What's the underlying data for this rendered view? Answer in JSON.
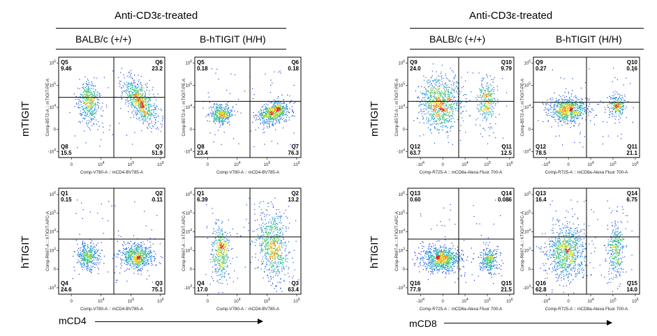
{
  "figure": {
    "groups": [
      {
        "title": "Anti-CD3ε-treated",
        "columns": [
          "BALB/c (+/+)",
          "B-hTIGIT (H/H)"
        ],
        "rows": [
          "mTIGIT",
          "hTIGIT"
        ],
        "x_axis_title": "mCD4"
      },
      {
        "title": "Anti-CD3ε-treated",
        "columns": [
          "BALB/c (+/+)",
          "B-hTIGIT (H/H)"
        ],
        "rows": [
          "mTIGIT",
          "hTIGIT"
        ],
        "x_axis_title": "mCD8"
      }
    ]
  },
  "chart_data": [
    {
      "type": "scatter",
      "panel": "CD4 / mTIGIT / BALB/c (+/+)",
      "xlabel": "Comp-V780-A :: mCD4-BV785-A",
      "ylabel": "Comp-B572-A :: mTIGIT-PE-A",
      "x_ticks": [
        "0",
        "10^4",
        "10^5",
        "10^6"
      ],
      "y_ticks": [
        "10^6",
        "10^5",
        "10^4",
        "0",
        "-10^4"
      ],
      "quadrants": [
        {
          "name": "Q5",
          "value": "9.46",
          "corner": "top-left"
        },
        {
          "name": "Q6",
          "value": "23.2",
          "corner": "top-right"
        },
        {
          "name": "Q8",
          "value": "15.5",
          "corner": "bottom-left"
        },
        {
          "name": "Q7",
          "value": "51.9",
          "corner": "bottom-right"
        }
      ],
      "populations": [
        {
          "x": 0.28,
          "y": 0.45,
          "sx": 0.05,
          "sy": 0.1,
          "rot": 0,
          "n": 420
        },
        {
          "x": 0.76,
          "y": 0.44,
          "sx": 0.055,
          "sy": 0.13,
          "rot": -30,
          "n": 700
        }
      ]
    },
    {
      "type": "scatter",
      "panel": "CD4 / mTIGIT / B-hTIGIT (H/H)",
      "xlabel": "Comp-V780-A :: mCD4-BV785-A",
      "ylabel": "Comp-B572-A :: mTIGIT-PE-A",
      "x_ticks": [
        "0",
        "10^4",
        "10^5",
        "10^6"
      ],
      "y_ticks": [
        "10^6",
        "10^5",
        "10^4",
        "0",
        "-10^4"
      ],
      "quadrants": [
        {
          "name": "Q5",
          "value": "0.18",
          "corner": "top-left"
        },
        {
          "name": "Q6",
          "value": "0.18",
          "corner": "top-right"
        },
        {
          "name": "Q8",
          "value": "23.4",
          "corner": "bottom-left"
        },
        {
          "name": "Q7",
          "value": "76.3",
          "corner": "bottom-right"
        }
      ],
      "populations": [
        {
          "x": 0.24,
          "y": 0.56,
          "sx": 0.05,
          "sy": 0.045,
          "rot": 0,
          "n": 380
        },
        {
          "x": 0.74,
          "y": 0.55,
          "sx": 0.08,
          "sy": 0.05,
          "rot": -28,
          "n": 650
        }
      ]
    },
    {
      "type": "scatter",
      "panel": "CD4 / hTIGIT / BALB/c (+/+)",
      "xlabel": "Comp-V780-A :: mCD4-BV785-A",
      "ylabel": "Comp-R667-A :: hTIGIT-APC-A",
      "x_ticks": [
        "0",
        "10^4",
        "10^5",
        "10^6"
      ],
      "y_ticks": [
        "10^6",
        "10^5",
        "10^4",
        "10^3",
        "0",
        "-10^3"
      ],
      "quadrants": [
        {
          "name": "Q1",
          "value": "0.15",
          "corner": "top-left"
        },
        {
          "name": "Q2",
          "value": "0.11",
          "corner": "top-right"
        },
        {
          "name": "Q4",
          "value": "24.6",
          "corner": "bottom-left"
        },
        {
          "name": "Q3",
          "value": "75.1",
          "corner": "bottom-right"
        }
      ],
      "populations": [
        {
          "x": 0.27,
          "y": 0.64,
          "sx": 0.05,
          "sy": 0.06,
          "rot": 0,
          "n": 380
        },
        {
          "x": 0.74,
          "y": 0.64,
          "sx": 0.075,
          "sy": 0.06,
          "rot": 0,
          "n": 650
        }
      ]
    },
    {
      "type": "scatter",
      "panel": "CD4 / hTIGIT / B-hTIGIT (H/H)",
      "xlabel": "Comp-V780-A :: mCD4-BV785-A",
      "ylabel": "Comp-R667-A :: hTIGIT-APC-A",
      "x_ticks": [
        "0",
        "10^4",
        "10^5",
        "10^6"
      ],
      "y_ticks": [
        "10^6",
        "10^5",
        "10^4",
        "10^3",
        "0",
        "-10^3"
      ],
      "quadrants": [
        {
          "name": "Q1",
          "value": "6.39",
          "corner": "top-left"
        },
        {
          "name": "Q2",
          "value": "13.2",
          "corner": "top-right"
        },
        {
          "name": "Q4",
          "value": "17.0",
          "corner": "bottom-left"
        },
        {
          "name": "Q3",
          "value": "63.4",
          "corner": "bottom-right"
        }
      ],
      "populations": [
        {
          "x": 0.24,
          "y": 0.6,
          "sx": 0.045,
          "sy": 0.13,
          "rot": 0,
          "n": 420
        },
        {
          "x": 0.73,
          "y": 0.55,
          "sx": 0.07,
          "sy": 0.17,
          "rot": -8,
          "n": 700
        }
      ]
    },
    {
      "type": "scatter",
      "panel": "CD8 / mTIGIT / BALB/c (+/+)",
      "xlabel": "Comp-R725-A :: mCD8a-Alexa Fluor 700-A",
      "ylabel": "Comp-B572-A :: mTIGIT-PE-A",
      "x_ticks": [
        "-10^4",
        "0",
        "10^4",
        "10^5",
        "10^6"
      ],
      "y_ticks": [
        "10^6",
        "10^5",
        "10^4",
        "0",
        "-10^4"
      ],
      "quadrants": [
        {
          "name": "Q9",
          "value": "24.0",
          "corner": "top-left"
        },
        {
          "name": "Q10",
          "value": "9.79",
          "corner": "top-right"
        },
        {
          "name": "Q12",
          "value": "63.7",
          "corner": "bottom-left"
        },
        {
          "name": "Q11",
          "value": "12.5",
          "corner": "bottom-right"
        }
      ],
      "populations": [
        {
          "x": 0.3,
          "y": 0.45,
          "sx": 0.09,
          "sy": 0.13,
          "rot": 0,
          "n": 900
        },
        {
          "x": 0.74,
          "y": 0.43,
          "sx": 0.04,
          "sy": 0.11,
          "rot": 0,
          "n": 300
        }
      ]
    },
    {
      "type": "scatter",
      "panel": "CD8 / mTIGIT / B-hTIGIT (H/H)",
      "xlabel": "Comp-R725-A :: mCD8a-Alexa Fluor 700-A",
      "ylabel": "Comp-B572-A :: mTIGIT-PE-A",
      "x_ticks": [
        "-10^4",
        "0",
        "10^4",
        "10^5",
        "10^6"
      ],
      "y_ticks": [
        "10^6",
        "10^5",
        "10^4",
        "0",
        "-10^4"
      ],
      "quadrants": [
        {
          "name": "Q9",
          "value": "0.27",
          "corner": "top-left"
        },
        {
          "name": "Q10",
          "value": "0.16",
          "corner": "top-right"
        },
        {
          "name": "Q12",
          "value": "78.5",
          "corner": "bottom-left"
        },
        {
          "name": "Q11",
          "value": "21.1",
          "corner": "bottom-right"
        }
      ],
      "populations": [
        {
          "x": 0.32,
          "y": 0.52,
          "sx": 0.09,
          "sy": 0.06,
          "rot": 0,
          "n": 750
        },
        {
          "x": 0.78,
          "y": 0.48,
          "sx": 0.04,
          "sy": 0.05,
          "rot": 0,
          "n": 260
        }
      ]
    },
    {
      "type": "scatter",
      "panel": "CD8 / hTIGIT / BALB/c (+/+)",
      "xlabel": "Comp-R725-A :: mCD8a-Alexa Fluor 700-A",
      "ylabel": "Comp-R667-A :: hTIGIT-APC-A",
      "x_ticks": [
        "-10^4",
        "0",
        "10^4",
        "10^5",
        "10^6"
      ],
      "y_ticks": [
        "10^6",
        "10^5",
        "10^4",
        "10^3",
        "0",
        "-10^3"
      ],
      "quadrants": [
        {
          "name": "Q13",
          "value": "0.60",
          "corner": "top-left"
        },
        {
          "name": "Q14",
          "value": "0.086",
          "corner": "top-right"
        },
        {
          "name": "Q16",
          "value": "77.9",
          "corner": "bottom-left"
        },
        {
          "name": "Q15",
          "value": "21.5",
          "corner": "bottom-right"
        }
      ],
      "populations": [
        {
          "x": 0.31,
          "y": 0.66,
          "sx": 0.09,
          "sy": 0.06,
          "rot": 0,
          "n": 850
        },
        {
          "x": 0.76,
          "y": 0.68,
          "sx": 0.04,
          "sy": 0.06,
          "rot": 0,
          "n": 300
        }
      ]
    },
    {
      "type": "scatter",
      "panel": "CD8 / hTIGIT / B-hTIGIT (H/H)",
      "xlabel": "Comp-R725-A :: mCD8a-Alexa Fluor 700-A",
      "ylabel": "Comp-R667-A :: hTIGIT-APC-A",
      "x_ticks": [
        "-10^4",
        "0",
        "10^4",
        "10^5",
        "10^6"
      ],
      "y_ticks": [
        "10^6",
        "10^5",
        "10^4",
        "10^3",
        "0",
        "-10^3"
      ],
      "quadrants": [
        {
          "name": "Q13",
          "value": "16.4",
          "corner": "top-left"
        },
        {
          "name": "Q14",
          "value": "6.75",
          "corner": "top-right"
        },
        {
          "name": "Q16",
          "value": "62.8",
          "corner": "bottom-left"
        },
        {
          "name": "Q15",
          "value": "14.0",
          "corner": "bottom-right"
        }
      ],
      "populations": [
        {
          "x": 0.31,
          "y": 0.6,
          "sx": 0.09,
          "sy": 0.13,
          "rot": 0,
          "n": 900
        },
        {
          "x": 0.77,
          "y": 0.58,
          "sx": 0.04,
          "sy": 0.14,
          "rot": 0,
          "n": 350
        }
      ]
    }
  ]
}
